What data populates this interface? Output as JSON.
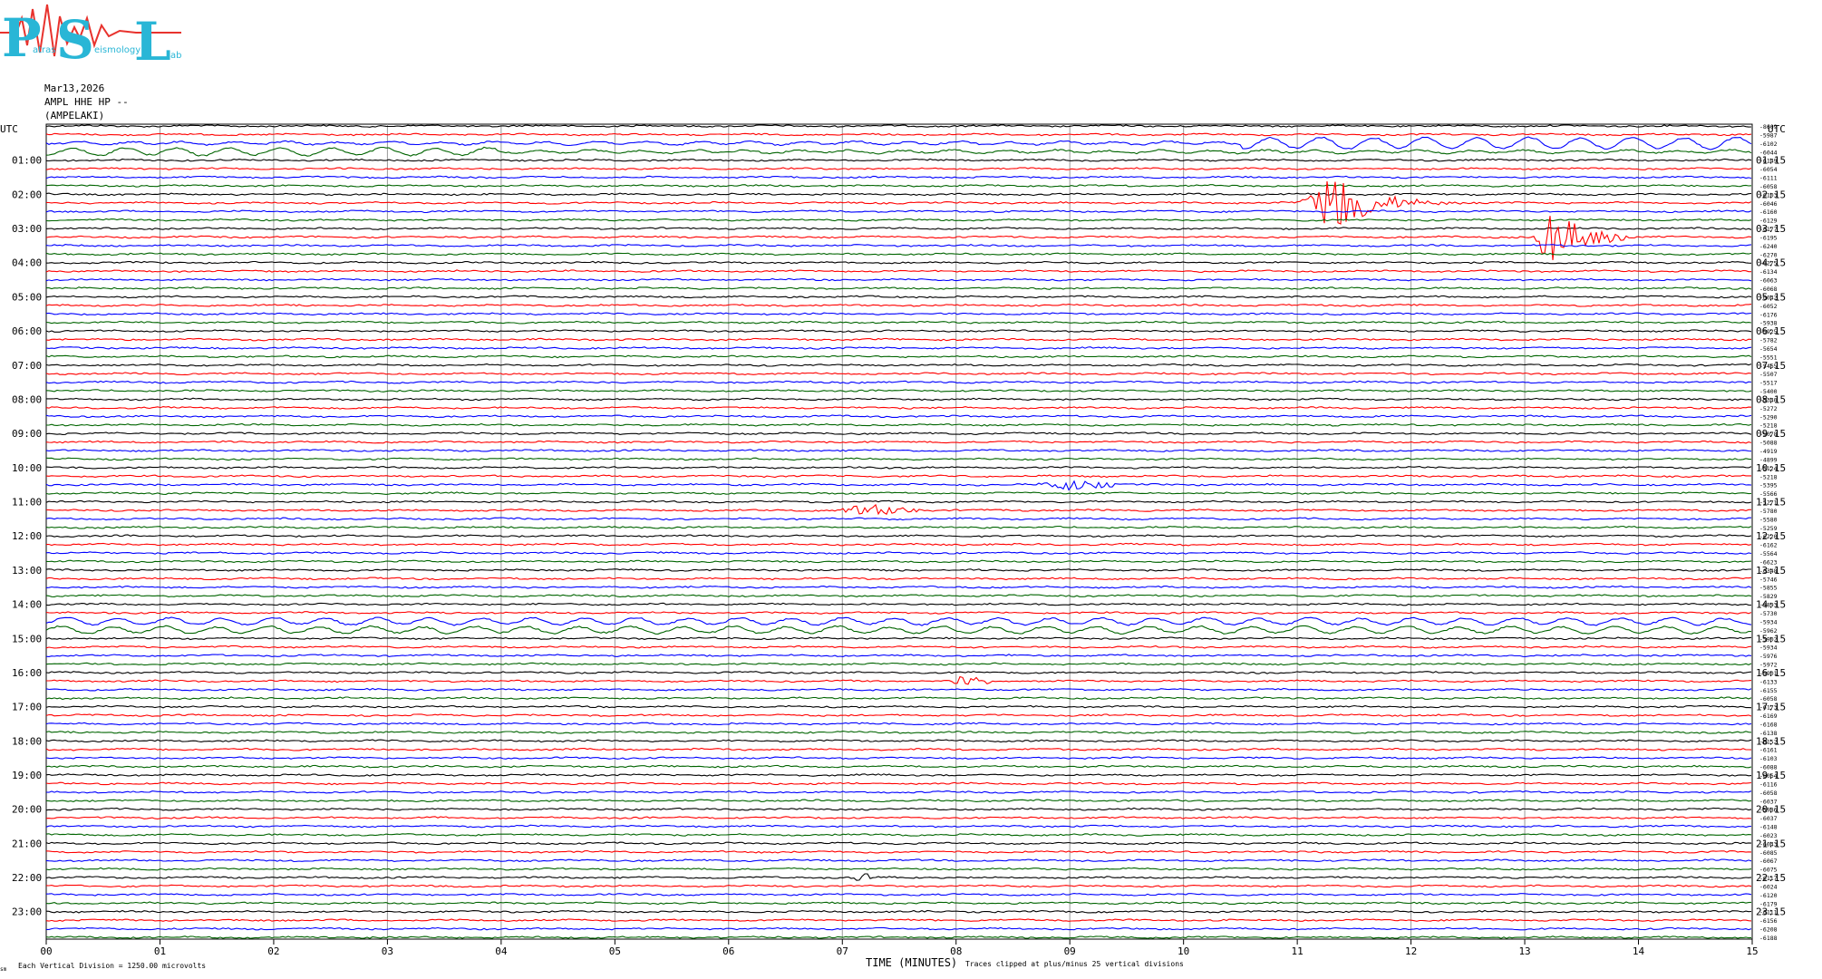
{
  "logo": {
    "letters": [
      "P",
      "S",
      "L"
    ],
    "words": [
      "atras",
      "eismology",
      "ab"
    ],
    "colors": {
      "letters": "#29b6d6",
      "wave": "#e8322d"
    }
  },
  "header": {
    "date": "Mar13,2026",
    "station": "AMPL HHE HP --",
    "location": "(AMPELAKI)"
  },
  "chart_data": {
    "type": "line",
    "description_free": true,
    "x_axis": {
      "label": "TIME (MINUTES)",
      "ticks": [
        "00",
        "01",
        "02",
        "03",
        "04",
        "05",
        "06",
        "07",
        "08",
        "09",
        "10",
        "11",
        "12",
        "13",
        "14",
        "15"
      ],
      "range": [
        0,
        15
      ]
    },
    "left_axis": {
      "title": "UTC",
      "labels": [
        "01:00",
        "02:00",
        "03:00",
        "04:00",
        "05:00",
        "06:00",
        "07:00",
        "08:00",
        "09:00",
        "10:00",
        "11:00",
        "12:00",
        "13:00",
        "14:00",
        "15:00",
        "16:00",
        "17:00",
        "18:00",
        "19:00",
        "20:00",
        "21:00",
        "22:00",
        "23:00"
      ]
    },
    "right_axis": {
      "title": "UTC",
      "labels": [
        "01:15",
        "02:15",
        "03:15",
        "04:15",
        "05:15",
        "06:15",
        "07:15",
        "08:15",
        "09:15",
        "10:15",
        "11:15",
        "12:15",
        "13:15",
        "14:15",
        "15:15",
        "16:15",
        "17:15",
        "18:15",
        "19:15",
        "20:15",
        "21:15",
        "22:15",
        "23:15"
      ]
    },
    "trace_colors": [
      "#000000",
      "#ff0000",
      "#0000ff",
      "#006400"
    ],
    "trace_offsets": [
      "-8609",
      "-5987",
      "-6102",
      "-6044",
      "-6149",
      "-6054",
      "-6111",
      "-6058",
      "-6103",
      "-6046",
      "-6160",
      "-6129",
      "-6177",
      "-6195",
      "-6240",
      "-6270",
      "-6275",
      "-6134",
      "-6063",
      "-6068",
      "-6042",
      "-6052",
      "-6176",
      "-5938",
      "-5925",
      "-5782",
      "-5654",
      "-5551",
      "-5465",
      "-5507",
      "-5517",
      "-5400",
      "-5340",
      "-5272",
      "-5290",
      "-5218",
      "-5078",
      "-5088",
      "-4919",
      "-4899",
      "-5124",
      "-5218",
      "-5395",
      "-5566",
      "-5271",
      "-5780",
      "-5580",
      "-5259",
      "-6220",
      "-6162",
      "-5564",
      "-6623",
      "-6348",
      "-5746",
      "-5855",
      "-5829",
      "-5893",
      "-5730",
      "-5934",
      "-5962",
      "-5902",
      "-5934",
      "-5976",
      "-5972",
      "-5901",
      "-6133",
      "-6155",
      "-6058",
      "-6173",
      "-6169",
      "-6168",
      "-6138",
      "-6152",
      "-6161",
      "-6103",
      "-6088",
      "-6064",
      "-6116",
      "-6058",
      "-6037",
      "-5986",
      "-6037",
      "-6148",
      "-6023",
      "-6043",
      "-6085",
      "-6067",
      "-6075",
      "-6117",
      "-6024",
      "-6120",
      "-6179",
      "-6111",
      "-6156",
      "-6208",
      "-6188"
    ],
    "events": [
      {
        "trace": 9,
        "start_min": 11.0,
        "peak_min": 11.3,
        "end_min": 12.6,
        "amplitude": 1.0
      },
      {
        "trace": 13,
        "start_min": 13.05,
        "peak_min": 13.2,
        "end_min": 13.9,
        "amplitude": 0.8
      },
      {
        "trace": 42,
        "start_min": 8.7,
        "peak_min": 8.95,
        "end_min": 9.4,
        "amplitude": 0.2
      },
      {
        "trace": 45,
        "start_min": 6.9,
        "peak_min": 7.25,
        "end_min": 7.7,
        "amplitude": 0.18
      },
      {
        "trace": 65,
        "start_min": 7.9,
        "peak_min": 8.05,
        "end_min": 8.3,
        "amplitude": 0.15
      },
      {
        "trace": 88,
        "start_min": 7.05,
        "peak_min": 7.12,
        "end_min": 7.25,
        "amplitude": 0.12
      }
    ],
    "notes": {
      "vertical_division": "Each Vertical Division = 1250.00 microvolts",
      "clipping": "Traces clipped at plus/minus 25 vertical divisions",
      "corner": "sm"
    }
  }
}
